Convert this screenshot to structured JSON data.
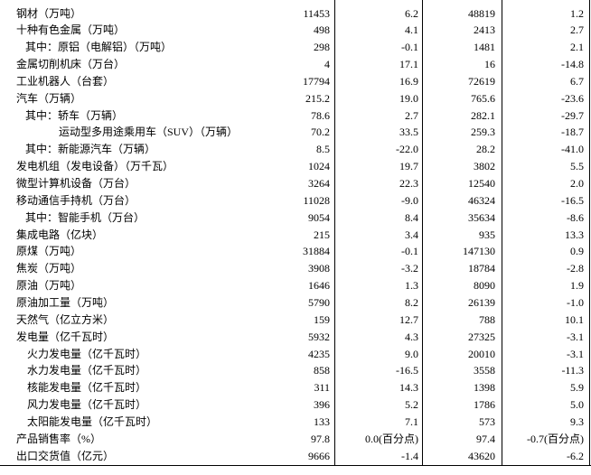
{
  "table": {
    "rows": [
      [
        "钢材（万吨）",
        "11453",
        "6.2",
        "48819",
        "1.2"
      ],
      [
        "十种有色金属（万吨）",
        "498",
        "4.1",
        "2413",
        "2.7"
      ],
      [
        "其中：原铝（电解铝）（万吨）",
        "298",
        "-0.1",
        "1481",
        "2.1"
      ],
      [
        "金属切削机床（万台）",
        "4",
        "17.1",
        "16",
        "-14.8"
      ],
      [
        "工业机器人（台套）",
        "17794",
        "16.9",
        "72619",
        "6.7"
      ],
      [
        "汽车（万辆）",
        "215.2",
        "19.0",
        "765.6",
        "-23.6"
      ],
      [
        "其中：轿车（万辆）",
        "78.6",
        "2.7",
        "282.1",
        "-29.7"
      ],
      [
        "运动型多用途乘用车（SUV）（万辆）",
        "70.2",
        "33.5",
        "259.3",
        "-18.7"
      ],
      [
        "其中：新能源汽车（万辆）",
        "8.5",
        "-22.0",
        "28.2",
        "-41.0"
      ],
      [
        "发电机组（发电设备）（万千瓦）",
        "1024",
        "19.7",
        "3802",
        "5.5"
      ],
      [
        "微型计算机设备（万台）",
        "3264",
        "22.3",
        "12540",
        "2.0"
      ],
      [
        "移动通信手持机（万台）",
        "11028",
        "-9.0",
        "46324",
        "-16.5"
      ],
      [
        "其中：智能手机（万台）",
        "9054",
        "8.4",
        "35634",
        "-8.6"
      ],
      [
        "集成电路（亿块）",
        "215",
        "3.4",
        "935",
        "13.3"
      ],
      [
        "原煤（万吨）",
        "31884",
        "-0.1",
        "147130",
        "0.9"
      ],
      [
        "焦炭（万吨）",
        "3908",
        "-3.2",
        "18784",
        "-2.8"
      ],
      [
        "原油（万吨）",
        "1646",
        "1.3",
        "8090",
        "1.9"
      ],
      [
        "原油加工量（万吨）",
        "5790",
        "8.2",
        "26139",
        "-1.0"
      ],
      [
        "天然气（亿立方米）",
        "159",
        "12.7",
        "788",
        "10.1"
      ],
      [
        "发电量（亿千瓦时）",
        "5932",
        "4.3",
        "27325",
        "-3.1"
      ],
      [
        "火力发电量（亿千瓦时）",
        "4235",
        "9.0",
        "20010",
        "-3.1"
      ],
      [
        "水力发电量（亿千瓦时）",
        "858",
        "-16.5",
        "3558",
        "-11.3"
      ],
      [
        "核能发电量（亿千瓦时）",
        "311",
        "14.3",
        "1398",
        "5.9"
      ],
      [
        "风力发电量（亿千瓦时）",
        "396",
        "5.2",
        "1786",
        "5.0"
      ],
      [
        "太阳能发电量（亿千瓦时）",
        "133",
        "7.1",
        "573",
        "9.3"
      ],
      [
        "产品销售率（%）",
        "97.8",
        "0.0(百分点)",
        "97.4",
        "-0.7(百分点)"
      ],
      [
        "出口交货值（亿元）",
        "9666",
        "-1.4",
        "43620",
        "-6.2"
      ]
    ]
  }
}
